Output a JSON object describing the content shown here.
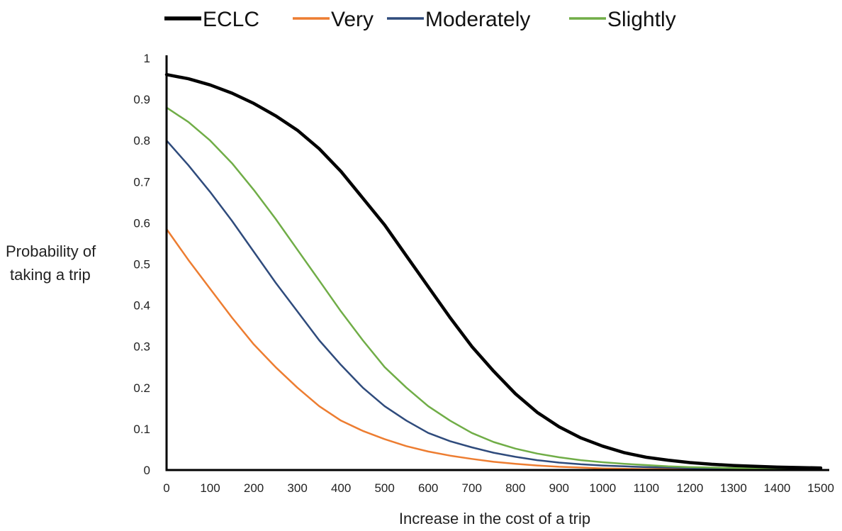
{
  "chart_data": {
    "type": "line",
    "title": "",
    "xlabel": "Increase in the cost of a trip",
    "ylabel_lines": [
      "Probability of",
      "taking a trip"
    ],
    "xlim": [
      0,
      1500
    ],
    "ylim": [
      0,
      1
    ],
    "x_ticks": [
      "0",
      "100",
      "200",
      "300",
      "400",
      "500",
      "600",
      "700",
      "800",
      "900",
      "1000",
      "1100",
      "1200",
      "1300",
      "1400",
      "1500"
    ],
    "y_ticks": [
      "0",
      "0.1",
      "0.2",
      "0.3",
      "0.4",
      "0.5",
      "0.6",
      "0.7",
      "0.8",
      "0.9",
      "1"
    ],
    "grid": false,
    "legend_position": "top",
    "x": [
      0,
      50,
      100,
      150,
      200,
      250,
      300,
      350,
      400,
      450,
      500,
      550,
      600,
      650,
      700,
      750,
      800,
      850,
      900,
      950,
      1000,
      1050,
      1100,
      1150,
      1200,
      1250,
      1300,
      1350,
      1400,
      1450,
      1500
    ],
    "series": [
      {
        "name": "ECLC",
        "color": "#000000",
        "width": 4.5,
        "values": [
          0.96,
          0.95,
          0.935,
          0.915,
          0.89,
          0.86,
          0.825,
          0.78,
          0.725,
          0.66,
          0.595,
          0.52,
          0.445,
          0.37,
          0.3,
          0.24,
          0.185,
          0.14,
          0.105,
          0.078,
          0.058,
          0.042,
          0.031,
          0.024,
          0.018,
          0.014,
          0.011,
          0.009,
          0.007,
          0.006,
          0.005
        ]
      },
      {
        "name": "Very",
        "color": "#ED7D31",
        "width": 2.5,
        "values": [
          0.585,
          0.51,
          0.44,
          0.37,
          0.305,
          0.25,
          0.2,
          0.155,
          0.12,
          0.095,
          0.075,
          0.058,
          0.045,
          0.035,
          0.027,
          0.02,
          0.015,
          0.011,
          0.008,
          0.006,
          0.004,
          0.003,
          0.002,
          0.002,
          0.001,
          0.001,
          0.001,
          0.001,
          0.001,
          0.001,
          0.001
        ]
      },
      {
        "name": "Moderately",
        "color": "#2F4B7C",
        "width": 2.5,
        "values": [
          0.8,
          0.74,
          0.675,
          0.605,
          0.53,
          0.455,
          0.385,
          0.315,
          0.255,
          0.2,
          0.155,
          0.12,
          0.09,
          0.07,
          0.055,
          0.042,
          0.032,
          0.024,
          0.018,
          0.014,
          0.011,
          0.009,
          0.007,
          0.006,
          0.005,
          0.004,
          0.004,
          0.003,
          0.003,
          0.002,
          0.002
        ]
      },
      {
        "name": "Slightly",
        "color": "#70AD47",
        "width": 2.5,
        "values": [
          0.88,
          0.845,
          0.8,
          0.745,
          0.68,
          0.61,
          0.535,
          0.46,
          0.385,
          0.315,
          0.25,
          0.2,
          0.155,
          0.12,
          0.09,
          0.068,
          0.052,
          0.04,
          0.031,
          0.024,
          0.019,
          0.015,
          0.012,
          0.009,
          0.007,
          0.006,
          0.005,
          0.004,
          0.003,
          0.002,
          0.002
        ]
      }
    ]
  }
}
